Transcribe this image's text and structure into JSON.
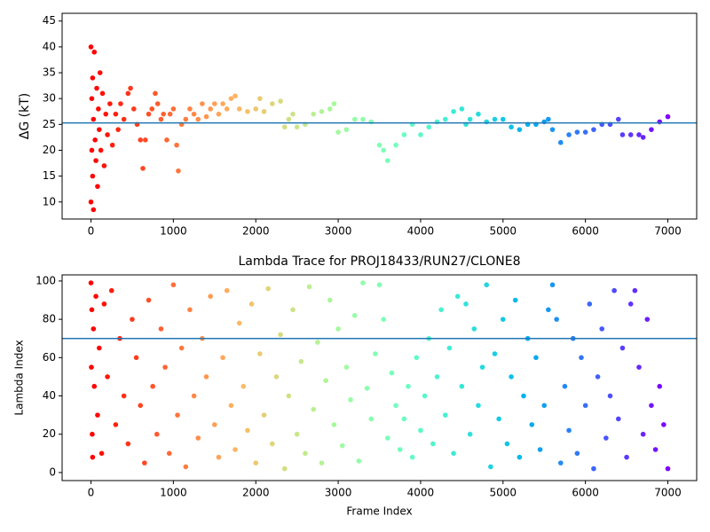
{
  "chart_data": [
    {
      "type": "scatter",
      "ylabel": "ΔG (kT)",
      "cmap": "rainbow_r",
      "hline": 25.3,
      "hline_color": "#1f77b4",
      "xlim": [
        -350,
        7350
      ],
      "xticks": [
        0,
        1000,
        2000,
        3000,
        4000,
        5000,
        6000,
        7000
      ],
      "ylim": [
        6.7,
        46.5
      ],
      "yticks": [
        10,
        15,
        20,
        25,
        30,
        35,
        40,
        45
      ],
      "x": [
        0,
        0,
        10,
        10,
        20,
        20,
        30,
        30,
        40,
        50,
        60,
        70,
        80,
        90,
        100,
        110,
        120,
        140,
        160,
        180,
        200,
        230,
        260,
        300,
        330,
        360,
        400,
        450,
        480,
        520,
        560,
        600,
        630,
        660,
        700,
        740,
        780,
        810,
        850,
        880,
        920,
        960,
        1000,
        1040,
        1060,
        1100,
        1150,
        1200,
        1250,
        1300,
        1350,
        1400,
        1450,
        1500,
        1550,
        1600,
        1650,
        1700,
        1750,
        1800,
        1900,
        2000,
        2050,
        2100,
        2200,
        2300,
        2350,
        2400,
        2450,
        2500,
        2600,
        2700,
        2800,
        2900,
        2950,
        3000,
        3100,
        3200,
        3300,
        3400,
        3500,
        3550,
        3600,
        3700,
        3800,
        3900,
        4000,
        4100,
        4200,
        4300,
        4400,
        4500,
        4550,
        4600,
        4700,
        4800,
        4900,
        5000,
        5100,
        5200,
        5300,
        5400,
        5500,
        5550,
        5600,
        5700,
        5800,
        5900,
        6000,
        6100,
        6200,
        6300,
        6400,
        6450,
        6550,
        6650,
        6700,
        6800,
        6900,
        7000
      ],
      "values": [
        40,
        10,
        30,
        20,
        34,
        15,
        26,
        8.5,
        39,
        22,
        18,
        32,
        13,
        28,
        24,
        35,
        20,
        31,
        17,
        27,
        23,
        29,
        21,
        27,
        24,
        29,
        26,
        31,
        32,
        28,
        25,
        22,
        16.5,
        22,
        27,
        28,
        31,
        29,
        26,
        27,
        22,
        27,
        28,
        21,
        16,
        25,
        26,
        28,
        27,
        26,
        29,
        26.5,
        28,
        29,
        27,
        29,
        28,
        30,
        30.5,
        28,
        27.5,
        28,
        30,
        27.5,
        29,
        29.5,
        24.5,
        26,
        27,
        24.5,
        25,
        27,
        27.5,
        28,
        29,
        23.5,
        24,
        26,
        26,
        25.5,
        21,
        20,
        18,
        21,
        23,
        25,
        23,
        24.5,
        25.5,
        26,
        27.5,
        28,
        25,
        26,
        27,
        25.5,
        26,
        26,
        24.5,
        24,
        25,
        25,
        25.5,
        26,
        24,
        21.5,
        23,
        23.5,
        23.5,
        24,
        25,
        25,
        26,
        23,
        23,
        23,
        22.5,
        24,
        25.5,
        26.5
      ]
    },
    {
      "type": "scatter",
      "title": "Lambda Trace for PROJ18433/RUN27/CLONE8",
      "xlabel": "Frame Index",
      "ylabel": "Lambda Index",
      "cmap": "rainbow_r",
      "hline": 70,
      "hline_color": "#1f77b4",
      "xlim": [
        -350,
        7350
      ],
      "xticks": [
        0,
        1000,
        2000,
        3000,
        4000,
        5000,
        6000,
        7000
      ],
      "ylim": [
        -4.2,
        103.2
      ],
      "yticks": [
        0,
        20,
        40,
        60,
        80,
        100
      ],
      "x": [
        0,
        5,
        10,
        15,
        20,
        30,
        40,
        60,
        80,
        100,
        130,
        160,
        200,
        250,
        300,
        350,
        400,
        450,
        500,
        550,
        600,
        650,
        700,
        750,
        800,
        850,
        900,
        950,
        1000,
        1050,
        1100,
        1150,
        1200,
        1250,
        1300,
        1350,
        1400,
        1450,
        1500,
        1550,
        1600,
        1650,
        1700,
        1750,
        1800,
        1850,
        1900,
        1950,
        2000,
        2050,
        2100,
        2150,
        2200,
        2250,
        2300,
        2350,
        2400,
        2450,
        2500,
        2550,
        2600,
        2650,
        2700,
        2750,
        2800,
        2850,
        2900,
        2950,
        3000,
        3050,
        3100,
        3150,
        3200,
        3250,
        3300,
        3350,
        3400,
        3450,
        3500,
        3550,
        3600,
        3650,
        3700,
        3750,
        3800,
        3850,
        3900,
        3950,
        4000,
        4050,
        4100,
        4150,
        4200,
        4250,
        4300,
        4350,
        4400,
        4450,
        4500,
        4550,
        4600,
        4650,
        4700,
        4750,
        4800,
        4850,
        4900,
        4950,
        5000,
        5050,
        5100,
        5150,
        5200,
        5250,
        5300,
        5350,
        5400,
        5450,
        5500,
        5550,
        5600,
        5650,
        5700,
        5750,
        5800,
        5850,
        5900,
        5950,
        6000,
        6050,
        6100,
        6150,
        6200,
        6250,
        6300,
        6350,
        6400,
        6450,
        6500,
        6550,
        6600,
        6650,
        6700,
        6750,
        6800,
        6850,
        6900,
        6950,
        7000
      ],
      "values": [
        99,
        55,
        85,
        20,
        8,
        75,
        45,
        92,
        30,
        65,
        10,
        88,
        50,
        95,
        25,
        70,
        40,
        15,
        80,
        60,
        35,
        5,
        90,
        45,
        20,
        75,
        55,
        10,
        98,
        30,
        65,
        3,
        85,
        40,
        18,
        70,
        50,
        92,
        25,
        8,
        60,
        95,
        35,
        12,
        78,
        45,
        22,
        88,
        5,
        62,
        30,
        96,
        15,
        50,
        72,
        2,
        40,
        85,
        20,
        58,
        10,
        97,
        33,
        68,
        5,
        48,
        90,
        25,
        75,
        14,
        55,
        38,
        82,
        6,
        99,
        44,
        28,
        62,
        98,
        80,
        18,
        52,
        35,
        12,
        28,
        45,
        8,
        60,
        22,
        40,
        70,
        15,
        50,
        85,
        30,
        65,
        10,
        92,
        45,
        88,
        20,
        75,
        35,
        55,
        98,
        3,
        62,
        28,
        80,
        15,
        50,
        90,
        8,
        40,
        70,
        25,
        60,
        12,
        35,
        85,
        98,
        80,
        5,
        45,
        22,
        70,
        10,
        60,
        35,
        88,
        2,
        50,
        75,
        18,
        40,
        95,
        28,
        65,
        8,
        88,
        95,
        55,
        20,
        80,
        35,
        12,
        45,
        25,
        2
      ]
    }
  ]
}
